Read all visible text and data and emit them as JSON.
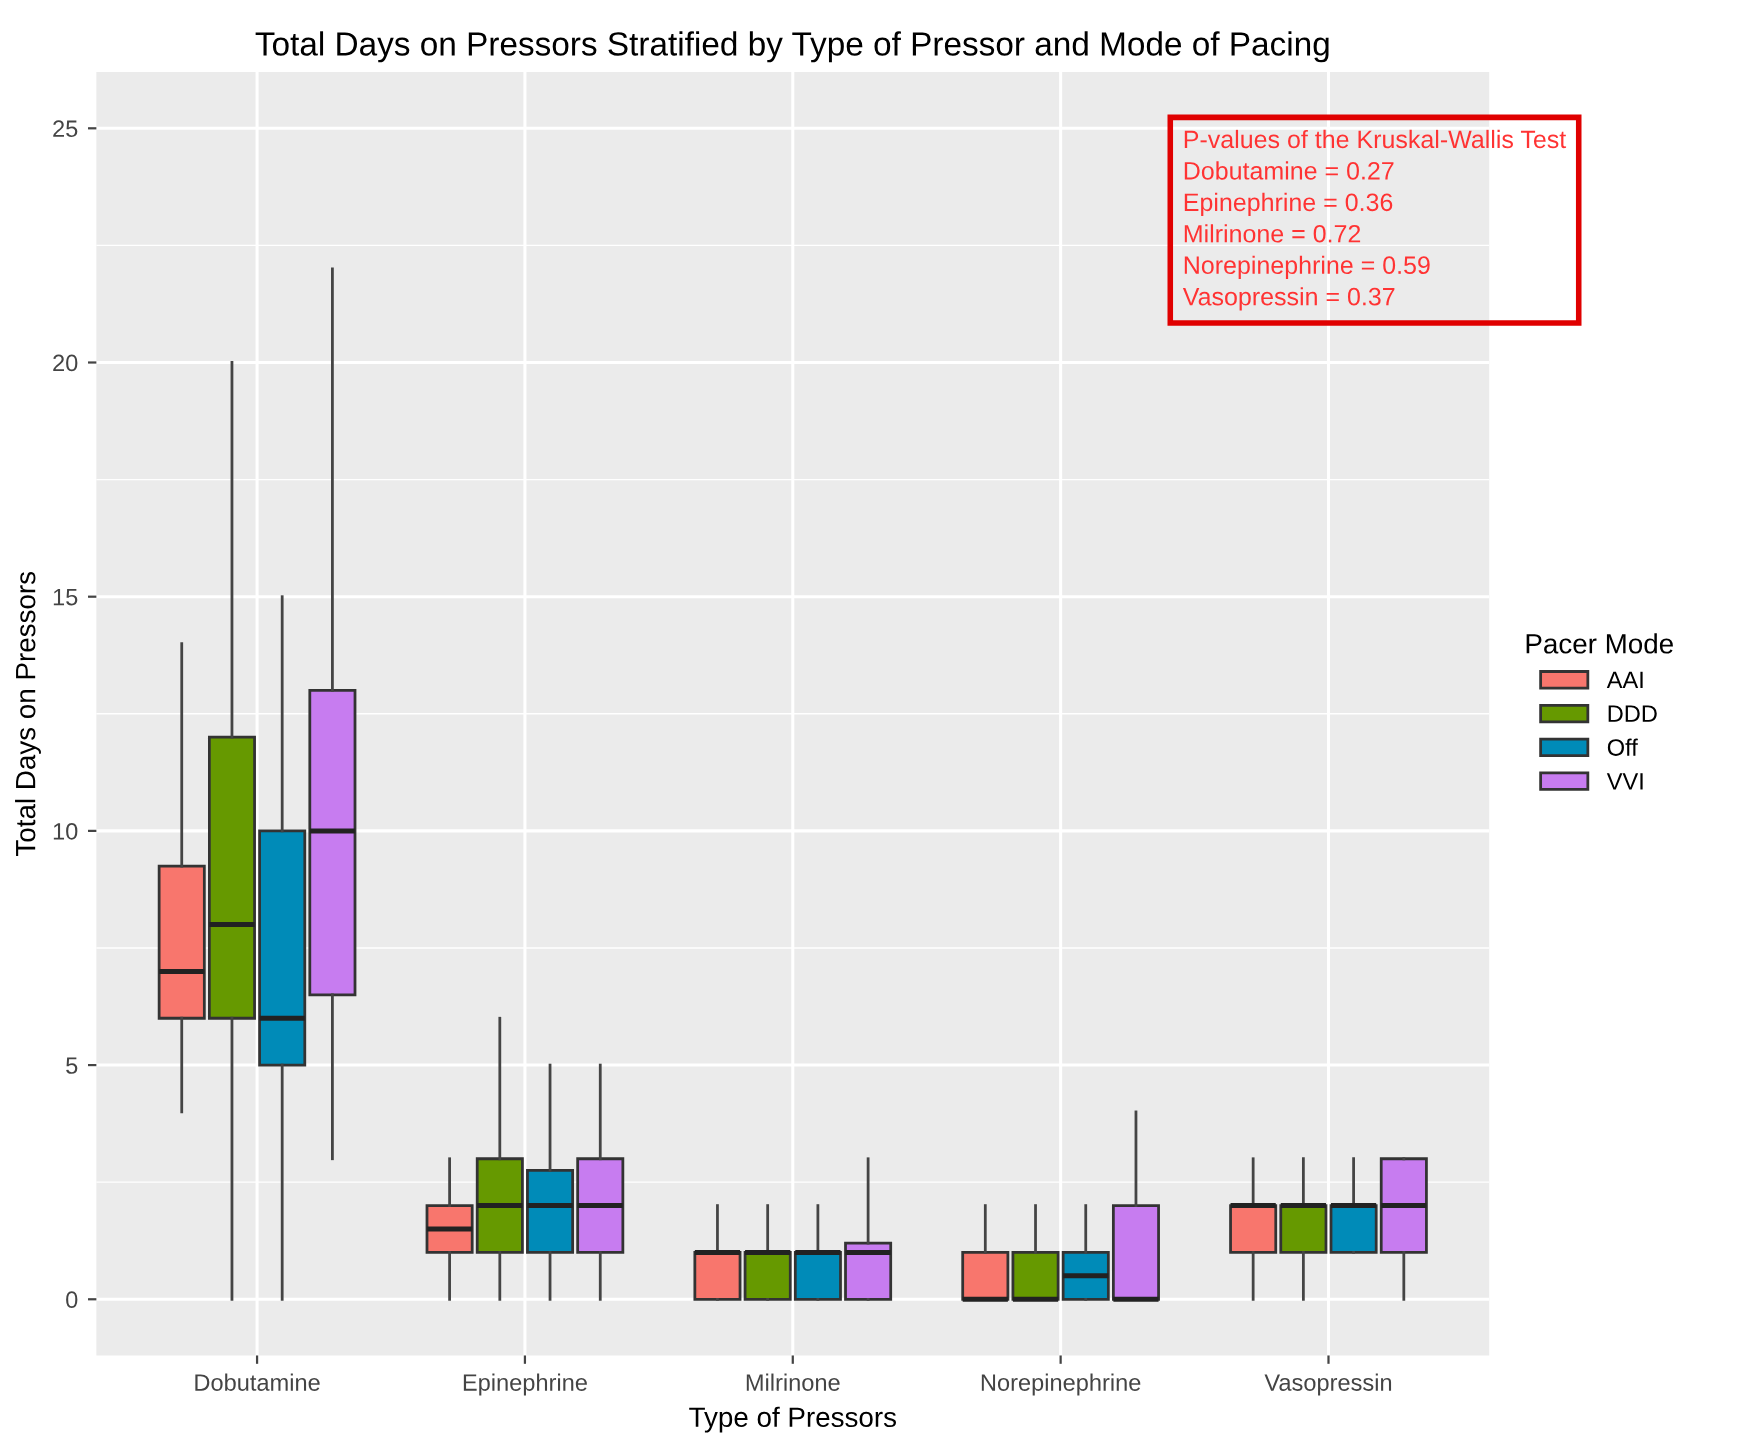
{
  "chart_data": {
    "type": "box",
    "title": "Total Days on Pressors Stratified by Type of Pressor and Mode of Pacing",
    "xlabel": "Type of Pressors",
    "ylabel": "Total Days on Pressors",
    "legend_title": "Pacer Mode",
    "categories": [
      "Dobutamine",
      "Epinephrine",
      "Milrinone",
      "Norepinephrine",
      "Vasopressin"
    ],
    "series": [
      {
        "name": "AAI",
        "color": "#f8766d",
        "boxes": [
          {
            "low": 4,
            "q1": 6,
            "median": 7,
            "q3": 9.25,
            "high": 14
          },
          {
            "low": 0,
            "q1": 1,
            "median": 1.5,
            "q3": 2,
            "high": 3
          },
          {
            "low": 0,
            "q1": 0,
            "median": 1,
            "q3": 1,
            "high": 2
          },
          {
            "low": 0,
            "q1": 0,
            "median": 0,
            "q3": 1,
            "high": 2
          },
          {
            "low": 0,
            "q1": 1,
            "median": 2,
            "q3": 2,
            "high": 3
          }
        ]
      },
      {
        "name": "DDD",
        "color": "#669900",
        "boxes": [
          {
            "low": 0,
            "q1": 6,
            "median": 8,
            "q3": 12,
            "high": 20
          },
          {
            "low": 0,
            "q1": 1,
            "median": 2,
            "q3": 3,
            "high": 6
          },
          {
            "low": 0,
            "q1": 0,
            "median": 1,
            "q3": 1,
            "high": 2
          },
          {
            "low": 0,
            "q1": 0,
            "median": 0,
            "q3": 1,
            "high": 2
          },
          {
            "low": 0,
            "q1": 1,
            "median": 2,
            "q3": 2,
            "high": 3
          }
        ]
      },
      {
        "name": "Off",
        "color": "#008bb8",
        "boxes": [
          {
            "low": 0,
            "q1": 5,
            "median": 6,
            "q3": 10,
            "high": 15
          },
          {
            "low": 0,
            "q1": 1,
            "median": 2,
            "q3": 2.75,
            "high": 5
          },
          {
            "low": 0,
            "q1": 0,
            "median": 1,
            "q3": 1,
            "high": 2
          },
          {
            "low": 0,
            "q1": 0,
            "median": 0.5,
            "q3": 1,
            "high": 2
          },
          {
            "low": 1,
            "q1": 1,
            "median": 2,
            "q3": 2,
            "high": 3
          }
        ]
      },
      {
        "name": "VVI",
        "color": "#c77cf0",
        "boxes": [
          {
            "low": 3,
            "q1": 6.5,
            "median": 10,
            "q3": 13,
            "high": 22
          },
          {
            "low": 0,
            "q1": 1,
            "median": 2,
            "q3": 3,
            "high": 5
          },
          {
            "low": 0,
            "q1": 0,
            "median": 1,
            "q3": 1.2,
            "high": 3
          },
          {
            "low": 0,
            "q1": 0,
            "median": 0,
            "q3": 2,
            "high": 4
          },
          {
            "low": 0,
            "q1": 1,
            "median": 2,
            "q3": 3,
            "high": 3
          }
        ]
      }
    ],
    "ylim": [
      -1.2,
      26.2
    ],
    "yticks": [
      0,
      5,
      10,
      15,
      20,
      25
    ],
    "grid": true,
    "legend": "right",
    "annotations": [
      "P-values of the Kruskal-Wallis Test\nDobutamine = 0.27\nEpinephrine = 0.36\nMilrinone = 0.72\nNorepinephrine = 0.59\nVasopressin = 0.37"
    ]
  }
}
